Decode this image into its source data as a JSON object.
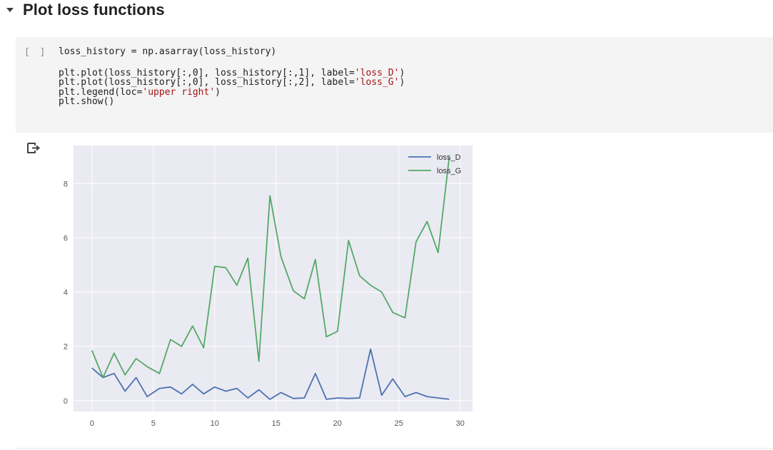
{
  "section": {
    "title": "Plot loss functions"
  },
  "cell": {
    "execution_count": "[ ]",
    "code_lines": [
      [
        {
          "t": "loss_history = np.asarray(loss_history)"
        }
      ],
      [],
      [
        {
          "t": "plt.plot(loss_history[:,0], loss_history[:,1], label="
        },
        {
          "t": "'loss_D'",
          "s": true
        },
        {
          "t": ")"
        }
      ],
      [
        {
          "t": "plt.plot(loss_history[:,0], loss_history[:,2], label="
        },
        {
          "t": "'loss_G'",
          "s": true
        },
        {
          "t": ")"
        }
      ],
      [
        {
          "t": "plt.legend(loc="
        },
        {
          "t": "'upper right'",
          "s": true
        },
        {
          "t": ")"
        }
      ],
      [
        {
          "t": "plt.show()"
        }
      ]
    ]
  },
  "output": {
    "icon": "output-arrow-icon"
  },
  "colors": {
    "plot_background": "#eaeaf2",
    "loss_D": "#4c72b0",
    "loss_G": "#55a868"
  },
  "chart_data": {
    "type": "line",
    "title": "",
    "xlabel": "",
    "ylabel": "",
    "xlim": [
      -1.5,
      31
    ],
    "ylim": [
      -0.4,
      9.4
    ],
    "xticks": [
      0,
      5,
      10,
      15,
      20,
      25,
      30
    ],
    "yticks": [
      0,
      2,
      4,
      6,
      8
    ],
    "grid": true,
    "legend": "upper right",
    "x": [
      0,
      0.9,
      1.8,
      2.7,
      3.6,
      4.5,
      5.5,
      6.4,
      7.3,
      8.2,
      9.1,
      10.0,
      10.9,
      11.8,
      12.7,
      13.6,
      14.5,
      15.4,
      16.4,
      17.3,
      18.2,
      19.1,
      20.0,
      20.9,
      21.8,
      22.7,
      23.6,
      24.5,
      25.5,
      26.4,
      27.3,
      28.2,
      29.1
    ],
    "series": [
      {
        "name": "loss_D",
        "values": [
          1.2,
          0.85,
          1.0,
          0.35,
          0.85,
          0.15,
          0.45,
          0.5,
          0.25,
          0.6,
          0.25,
          0.5,
          0.35,
          0.45,
          0.1,
          0.4,
          0.05,
          0.3,
          0.08,
          0.1,
          1.0,
          0.05,
          0.1,
          0.08,
          0.1,
          1.9,
          0.2,
          0.8,
          0.15,
          0.3,
          0.15,
          0.1,
          0.05
        ]
      },
      {
        "name": "loss_G",
        "values": [
          1.85,
          0.85,
          1.75,
          0.95,
          1.55,
          1.25,
          1.0,
          2.25,
          2.0,
          2.75,
          1.95,
          4.95,
          4.9,
          4.25,
          5.25,
          1.45,
          7.55,
          5.3,
          4.05,
          3.75,
          5.2,
          2.35,
          2.55,
          5.9,
          4.6,
          4.25,
          4.0,
          3.25,
          3.05,
          5.85,
          6.6,
          5.45,
          8.95
        ]
      }
    ]
  }
}
